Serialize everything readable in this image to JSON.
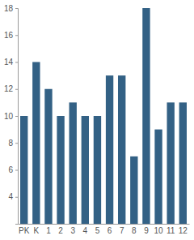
{
  "chart_data": {
    "type": "bar",
    "categories": [
      "PK",
      "K",
      "1",
      "2",
      "3",
      "4",
      "5",
      "6",
      "7",
      "8",
      "9",
      "10",
      "11",
      "12"
    ],
    "values": [
      10,
      14,
      12,
      10,
      11,
      10,
      10,
      13,
      13,
      7,
      18,
      9,
      11,
      11
    ],
    "color": "#336185",
    "ylim": [
      2,
      18
    ],
    "yticks": [
      4,
      6,
      8,
      10,
      12,
      14,
      16,
      18
    ],
    "grid": false
  }
}
